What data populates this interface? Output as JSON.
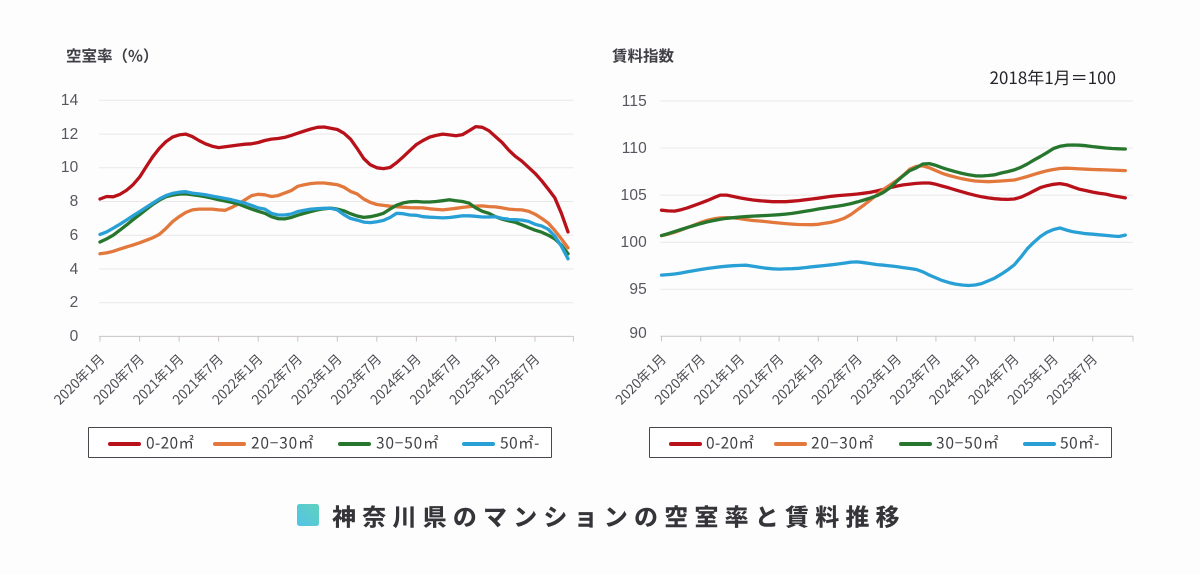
{
  "page": {
    "background": "#fdfdfd"
  },
  "footer_title": {
    "text": "神奈川県のマンションの空室率と賃料推移",
    "marker_color": "#59c8da"
  },
  "chart_data": [
    {
      "type": "line",
      "title": "空室率（%）",
      "x_tick_labels": [
        "2020年1月",
        "2020年7月",
        "2021年1月",
        "2021年7月",
        "2022年1月",
        "2022年7月",
        "2023年1月",
        "2023年7月",
        "2024年1月",
        "2024年7月",
        "2025年1月",
        "2025年7月"
      ],
      "x_frequency": "monthly",
      "ylim": [
        0,
        14
      ],
      "ytick_step": 2,
      "y_tick_labels": [
        "0",
        "2",
        "4",
        "6",
        "8",
        "10",
        "12",
        "14"
      ],
      "grid": true,
      "legend_position": "bottom",
      "series": [
        {
          "name": "0-20㎡",
          "color": "#b8111a",
          "values": [
            8.15,
            8.3,
            8.28,
            8.42,
            8.66,
            9.0,
            9.45,
            10.05,
            10.65,
            11.15,
            11.55,
            11.82,
            11.95,
            12.0,
            11.85,
            11.62,
            11.42,
            11.28,
            11.2,
            11.25,
            11.3,
            11.35,
            11.4,
            11.42,
            11.5,
            11.62,
            11.7,
            11.74,
            11.8,
            11.92,
            12.05,
            12.18,
            12.3,
            12.4,
            12.42,
            12.35,
            12.27,
            12.05,
            11.7,
            11.15,
            10.55,
            10.18,
            10.0,
            9.95,
            10.02,
            10.3,
            10.65,
            11.02,
            11.38,
            11.62,
            11.82,
            11.92,
            12.0,
            11.95,
            11.9,
            11.97,
            12.2,
            12.44,
            12.4,
            12.2,
            11.85,
            11.5,
            11.05,
            10.68,
            10.39,
            10.03,
            9.67,
            9.23,
            8.73,
            8.22,
            7.3,
            6.2
          ]
        },
        {
          "name": "20−30㎡",
          "color": "#e2783c",
          "values": [
            4.9,
            4.95,
            5.05,
            5.18,
            5.3,
            5.42,
            5.55,
            5.7,
            5.85,
            6.05,
            6.4,
            6.8,
            7.1,
            7.35,
            7.5,
            7.55,
            7.55,
            7.55,
            7.5,
            7.48,
            7.65,
            7.85,
            8.1,
            8.35,
            8.43,
            8.4,
            8.3,
            8.35,
            8.5,
            8.65,
            8.9,
            9.0,
            9.07,
            9.1,
            9.1,
            9.05,
            9.0,
            8.85,
            8.6,
            8.45,
            8.15,
            7.95,
            7.82,
            7.77,
            7.72,
            7.69,
            7.66,
            7.64,
            7.63,
            7.62,
            7.57,
            7.53,
            7.5,
            7.55,
            7.6,
            7.65,
            7.7,
            7.73,
            7.74,
            7.7,
            7.68,
            7.62,
            7.55,
            7.52,
            7.5,
            7.42,
            7.25,
            7.0,
            6.72,
            6.28,
            5.78,
            5.25
          ]
        },
        {
          "name": "30−50㎡",
          "color": "#27762e",
          "values": [
            5.6,
            5.78,
            6.0,
            6.3,
            6.6,
            6.92,
            7.22,
            7.52,
            7.82,
            8.08,
            8.28,
            8.38,
            8.44,
            8.45,
            8.4,
            8.35,
            8.28,
            8.2,
            8.1,
            8.03,
            7.95,
            7.85,
            7.7,
            7.55,
            7.42,
            7.3,
            7.1,
            6.98,
            6.97,
            7.05,
            7.19,
            7.3,
            7.41,
            7.5,
            7.57,
            7.61,
            7.55,
            7.45,
            7.28,
            7.14,
            7.06,
            7.1,
            7.18,
            7.3,
            7.55,
            7.78,
            7.92,
            7.98,
            8.0,
            7.97,
            7.97,
            8.0,
            8.05,
            8.1,
            8.05,
            8.0,
            7.9,
            7.62,
            7.42,
            7.3,
            7.1,
            6.95,
            6.85,
            6.77,
            6.62,
            6.45,
            6.3,
            6.18,
            6.0,
            5.78,
            5.42,
            4.9
          ]
        },
        {
          "name": "50㎡-",
          "color": "#28a0d5",
          "values": [
            6.05,
            6.2,
            6.42,
            6.65,
            6.9,
            7.15,
            7.4,
            7.65,
            7.9,
            8.15,
            8.35,
            8.48,
            8.55,
            8.58,
            8.5,
            8.45,
            8.4,
            8.32,
            8.25,
            8.18,
            8.1,
            8.0,
            7.9,
            7.77,
            7.62,
            7.55,
            7.3,
            7.2,
            7.2,
            7.26,
            7.41,
            7.48,
            7.55,
            7.58,
            7.6,
            7.6,
            7.5,
            7.22,
            7.0,
            6.9,
            6.78,
            6.75,
            6.8,
            6.88,
            7.05,
            7.3,
            7.28,
            7.2,
            7.18,
            7.1,
            7.07,
            7.05,
            7.03,
            7.05,
            7.1,
            7.15,
            7.15,
            7.12,
            7.08,
            7.08,
            7.1,
            7.0,
            6.95,
            6.92,
            6.9,
            6.82,
            6.65,
            6.55,
            6.35,
            5.95,
            5.35,
            4.6
          ]
        }
      ]
    },
    {
      "type": "line",
      "title": "賃料指数",
      "annotation": "2018年1月＝100",
      "x_tick_labels": [
        "2020年1月",
        "2020年7月",
        "2021年1月",
        "2021年7月",
        "2022年1月",
        "2022年7月",
        "2023年1月",
        "2023年7月",
        "2024年1月",
        "2024年7月",
        "2025年1月",
        "2025年7月"
      ],
      "x_frequency": "monthly",
      "ylim": [
        90,
        115
      ],
      "ytick_step": 5,
      "y_tick_labels": [
        "90",
        "95",
        "100",
        "105",
        "110",
        "115"
      ],
      "grid": true,
      "legend_position": "bottom",
      "series": [
        {
          "name": "0-20㎡",
          "color": "#b8111a",
          "values": [
            103.4,
            103.32,
            103.3,
            103.45,
            103.65,
            103.9,
            104.15,
            104.42,
            104.72,
            105.0,
            105.0,
            104.85,
            104.7,
            104.58,
            104.48,
            104.4,
            104.35,
            104.3,
            104.3,
            104.3,
            104.35,
            104.42,
            104.5,
            104.58,
            104.67,
            104.77,
            104.87,
            104.95,
            105.0,
            105.05,
            105.12,
            105.2,
            105.3,
            105.45,
            105.6,
            105.78,
            105.95,
            106.08,
            106.17,
            106.24,
            106.28,
            106.28,
            106.15,
            105.95,
            105.76,
            105.55,
            105.35,
            105.15,
            104.98,
            104.82,
            104.7,
            104.62,
            104.56,
            104.54,
            104.58,
            104.78,
            105.08,
            105.45,
            105.8,
            106.0,
            106.15,
            106.22,
            106.1,
            105.85,
            105.62,
            105.48,
            105.32,
            105.2,
            105.1,
            104.95,
            104.82,
            104.7
          ]
        },
        {
          "name": "20−30㎡",
          "color": "#e2783c",
          "values": [
            100.7,
            100.85,
            101.05,
            101.3,
            101.56,
            101.82,
            102.1,
            102.32,
            102.48,
            102.58,
            102.6,
            102.58,
            102.5,
            102.4,
            102.3,
            102.25,
            102.18,
            102.1,
            102.03,
            101.97,
            101.92,
            101.88,
            101.86,
            101.85,
            101.9,
            102.0,
            102.12,
            102.3,
            102.55,
            102.95,
            103.45,
            103.95,
            104.5,
            105.05,
            105.6,
            106.08,
            106.55,
            107.1,
            107.75,
            108.05,
            108.1,
            107.9,
            107.6,
            107.3,
            107.08,
            106.9,
            106.73,
            106.6,
            106.5,
            106.45,
            106.42,
            106.45,
            106.5,
            106.55,
            106.6,
            106.78,
            106.97,
            107.2,
            107.4,
            107.58,
            107.72,
            107.82,
            107.86,
            107.82,
            107.78,
            107.75,
            107.72,
            107.7,
            107.68,
            107.65,
            107.62,
            107.6
          ]
        },
        {
          "name": "30−50㎡",
          "color": "#27762e",
          "values": [
            100.7,
            100.9,
            101.12,
            101.35,
            101.57,
            101.77,
            101.97,
            102.15,
            102.3,
            102.43,
            102.53,
            102.6,
            102.67,
            102.73,
            102.77,
            102.8,
            102.83,
            102.87,
            102.92,
            102.98,
            103.06,
            103.16,
            103.28,
            103.4,
            103.52,
            103.63,
            103.73,
            103.83,
            103.95,
            104.1,
            104.28,
            104.48,
            104.7,
            104.95,
            105.3,
            105.8,
            106.45,
            107.05,
            107.6,
            107.9,
            108.3,
            108.35,
            108.15,
            107.9,
            107.68,
            107.48,
            107.3,
            107.15,
            107.05,
            107.03,
            107.08,
            107.15,
            107.35,
            107.5,
            107.68,
            107.95,
            108.3,
            108.72,
            109.1,
            109.5,
            109.95,
            110.18,
            110.3,
            110.32,
            110.3,
            110.25,
            110.15,
            110.08,
            110.0,
            109.95,
            109.92,
            109.9
          ]
        },
        {
          "name": "50㎡-",
          "color": "#28a0d5",
          "values": [
            96.5,
            96.55,
            96.62,
            96.72,
            96.85,
            96.98,
            97.1,
            97.2,
            97.3,
            97.38,
            97.45,
            97.5,
            97.53,
            97.55,
            97.45,
            97.33,
            97.23,
            97.17,
            97.14,
            97.16,
            97.18,
            97.22,
            97.3,
            97.38,
            97.45,
            97.52,
            97.6,
            97.68,
            97.78,
            97.88,
            97.9,
            97.82,
            97.72,
            97.62,
            97.55,
            97.48,
            97.4,
            97.3,
            97.2,
            97.1,
            96.85,
            96.5,
            96.2,
            95.92,
            95.7,
            95.55,
            95.45,
            95.4,
            95.45,
            95.6,
            95.88,
            96.18,
            96.6,
            97.05,
            97.6,
            98.4,
            99.3,
            100.0,
            100.6,
            101.05,
            101.35,
            101.5,
            101.28,
            101.1,
            101.0,
            100.9,
            100.85,
            100.78,
            100.72,
            100.65,
            100.6,
            100.75
          ]
        }
      ]
    }
  ]
}
